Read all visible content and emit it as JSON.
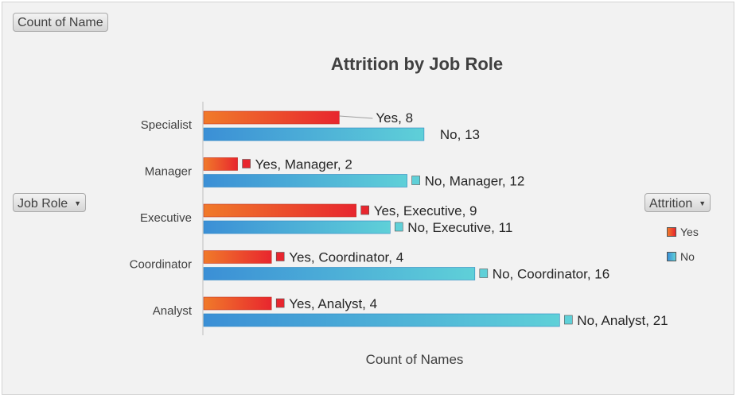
{
  "field_buttons": {
    "values": "Count of Name",
    "rows": "Job Role",
    "legend": "Attrition"
  },
  "colors": {
    "yes_start": "#f07a2a",
    "yes_end": "#e8262e",
    "no_start": "#3b8fd6",
    "no_end": "#5fd0d8"
  },
  "chart_data": {
    "type": "bar",
    "orientation": "horizontal",
    "title": "Attrition by Job Role",
    "xlabel": "Count of Names",
    "ylabel": "",
    "categories": [
      "Specialist",
      "Manager",
      "Executive",
      "Coordinator",
      "Analyst"
    ],
    "series": [
      {
        "name": "Yes",
        "values": [
          8,
          2,
          9,
          4,
          4
        ]
      },
      {
        "name": "No",
        "values": [
          13,
          12,
          11,
          16,
          21
        ]
      }
    ],
    "data_labels": [
      [
        "Yes, 8",
        "No, 13"
      ],
      [
        "Yes, Manager, 2",
        "No, Manager, 12"
      ],
      [
        "Yes, Executive, 9",
        "No, Executive, 11"
      ],
      [
        "Yes, Coordinator, 4",
        "No, Coordinator, 16"
      ],
      [
        "Yes, Analyst, 4",
        "No, Analyst, 21"
      ]
    ],
    "legend": {
      "position": "right",
      "entries": [
        "Yes",
        "No"
      ]
    },
    "grid": false
  }
}
